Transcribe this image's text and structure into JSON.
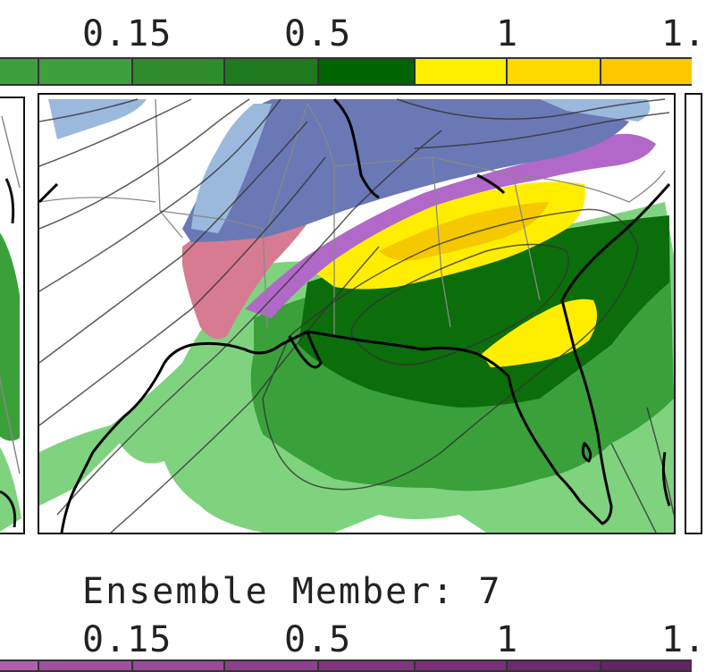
{
  "top_scale": {
    "tick_labels": [
      "0.15",
      "0.5",
      "1",
      "1."
    ],
    "colors": [
      "#3f9e3f",
      "#3f9e3f",
      "#2e8b2e",
      "#1f7a1f",
      "#006400",
      "#ffef00",
      "#ffd800",
      "#ffc800"
    ]
  },
  "caption": {
    "text": "Ensemble Member: 7"
  },
  "bottom_scale": {
    "tick_labels": [
      "0.15",
      "0.5",
      "1",
      "1."
    ],
    "colors": [
      "#b05fb0",
      "#a04fa0",
      "#9a4a9a",
      "#8d3f8d",
      "#7f357f",
      "#7a307a",
      "#6e2a6e",
      "#622462"
    ]
  },
  "map_colors": {
    "light_green": "#7fd37f",
    "medium_green": "#3aa13a",
    "dark_green": "#0b6e0b",
    "yellow": "#ffee00",
    "gold": "#f5c800",
    "purple": "#b168c8",
    "slate_blue": "#6a78b5",
    "light_blue": "#9bb8dd",
    "pink": "#d77b92"
  }
}
